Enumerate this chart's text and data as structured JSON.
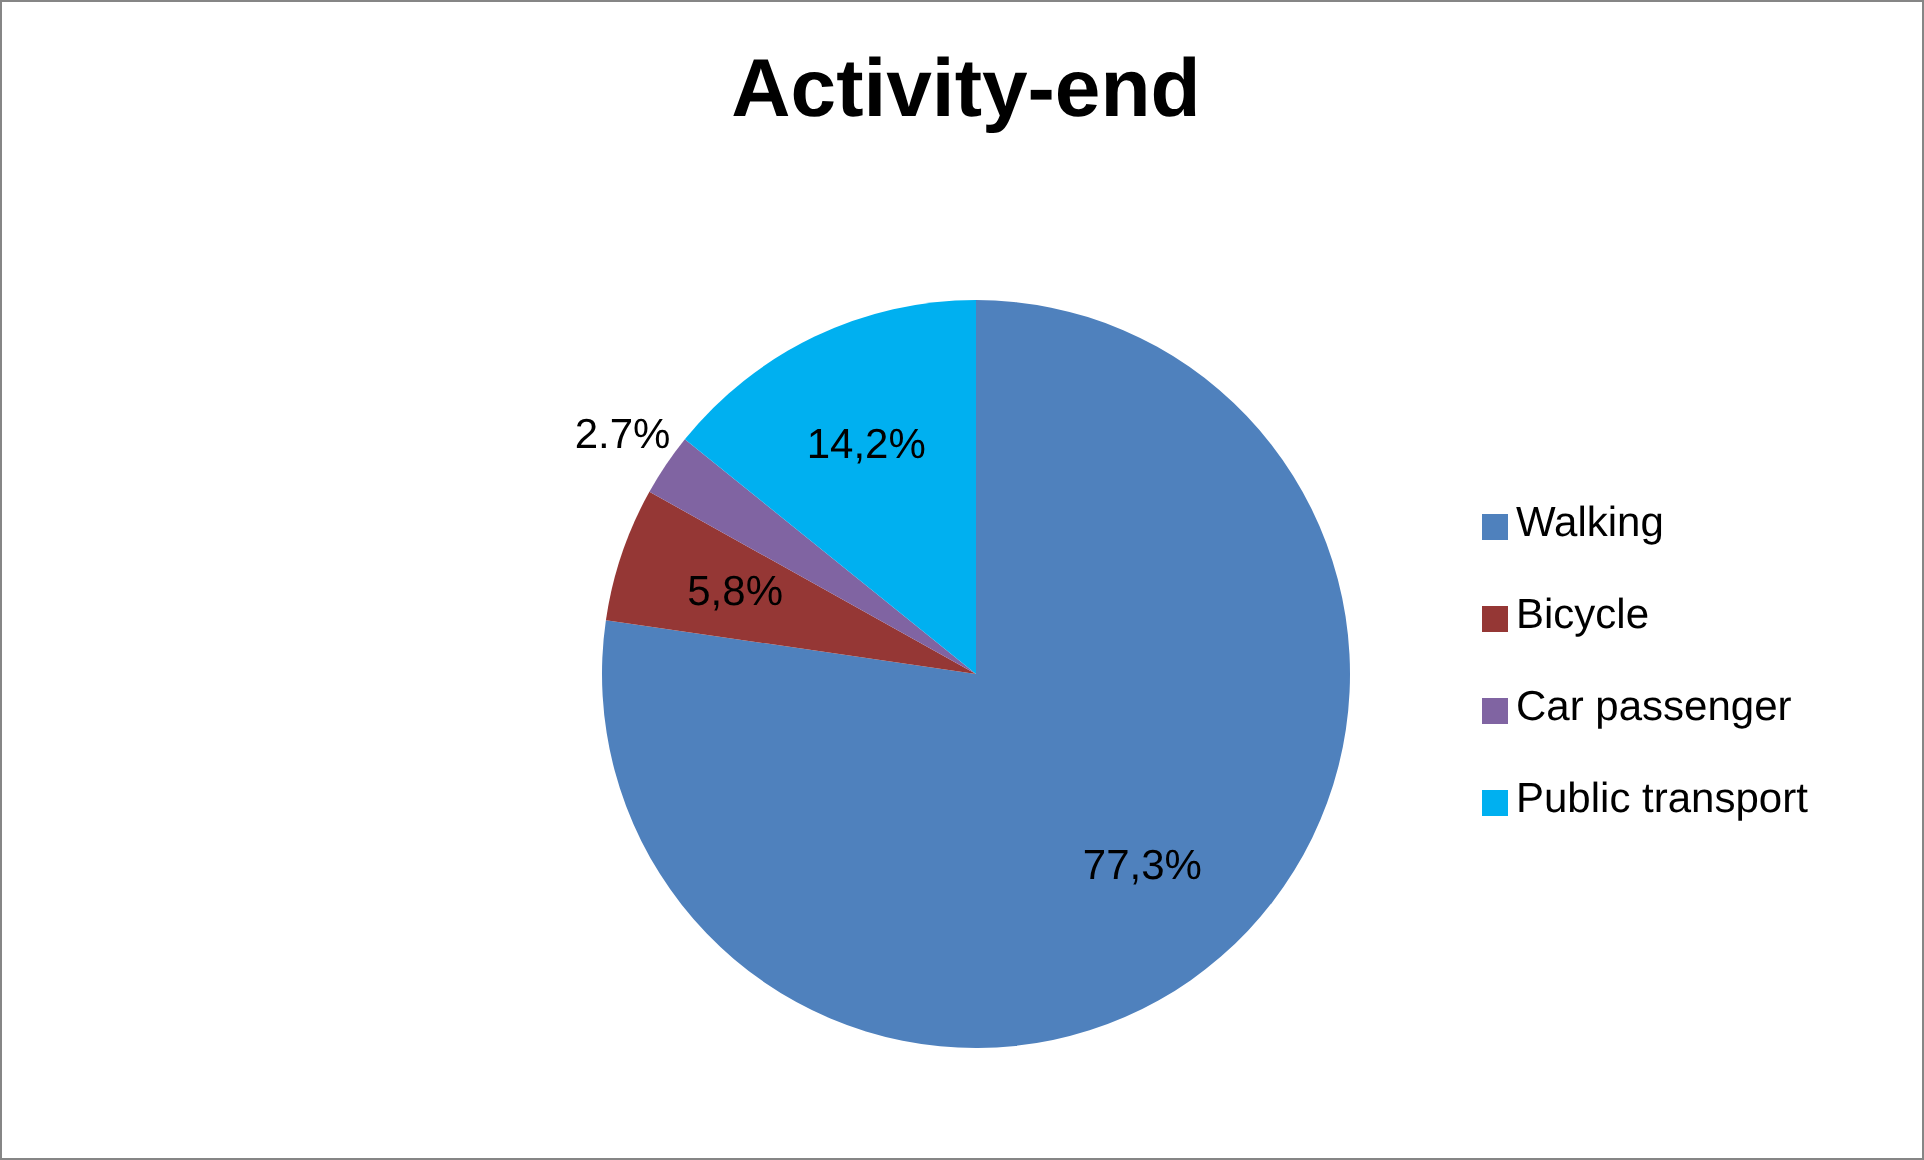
{
  "chart_data": {
    "type": "pie",
    "title": "Activity-end",
    "categories": [
      "Walking",
      "Bicycle",
      "Car passenger",
      "Public transport"
    ],
    "values": [
      77.3,
      5.8,
      2.7,
      14.2
    ],
    "value_labels": [
      "77,3%",
      "5,8%",
      "2.7%",
      "14,2%"
    ],
    "colors": [
      "#4f81bd",
      "#953735",
      "#8064a2",
      "#00b0f0"
    ],
    "legend": "right"
  }
}
